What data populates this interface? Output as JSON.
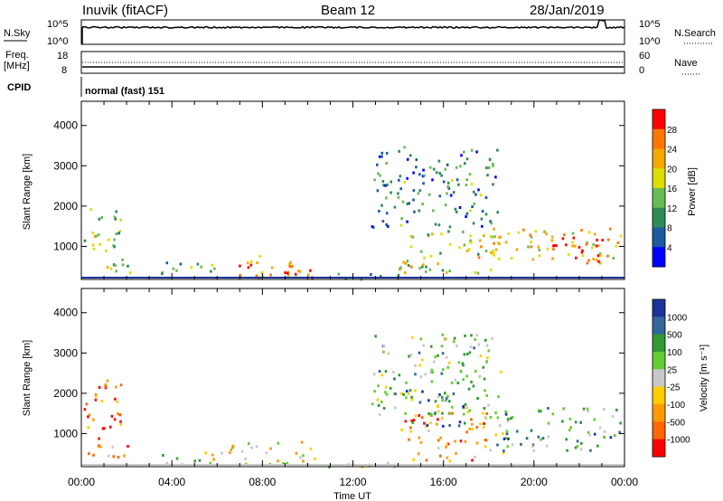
{
  "header": {
    "station": "Inuvik (fitACF)",
    "beam": "Beam 12",
    "date": "28/Jan/2019"
  },
  "top_panels": {
    "nsky_label": "N.Sky",
    "nsearch_label": "N.Search",
    "nsky_ticks": [
      "10^5",
      "10^0"
    ],
    "nsearch_ticks": [
      "10^5",
      "10^0"
    ],
    "freq_label_1": "Freq.",
    "freq_label_2": "[MHz]",
    "freq_ticks": [
      "18",
      "8"
    ],
    "nave_label": "Nave",
    "nave_ticks": [
      "60",
      "0"
    ],
    "cpid_label": "CPID",
    "cpid_value": "normal (fast) 151"
  },
  "colors": {
    "power_scale": [
      "#0000ff",
      "#1e5aa0",
      "#2e8b57",
      "#66bb55",
      "#dddd00",
      "#f4a800",
      "#ff7700",
      "#ff0000"
    ],
    "velocity_scale": [
      "#ff0000",
      "#ff6600",
      "#ff9900",
      "#ffcc00",
      "#c8c8c8",
      "#66cc33",
      "#339933",
      "#336699",
      "#1a3399"
    ],
    "ground_scatter": "#c8c8c8"
  },
  "chart_data": [
    {
      "type": "heatmap",
      "name": "power",
      "ylabel": "Slant Range [km]",
      "xlabel": "Time UT",
      "xlim": [
        0,
        24
      ],
      "xticks": [
        "00:00",
        "04:00",
        "08:00",
        "12:00",
        "16:00",
        "20:00",
        "00:00"
      ],
      "ylim": [
        180,
        4600
      ],
      "yticks": [
        1000,
        2000,
        3000,
        4000
      ],
      "colorbar_label": "Power [dB]",
      "colorbar_ticks": [
        "28",
        "24",
        "20",
        "16",
        "12",
        "8",
        "4"
      ],
      "colorbar_range": [
        0,
        30
      ],
      "scatter_regions": [
        {
          "t": [
            0.1,
            1.7
          ],
          "r": [
            800,
            2100
          ],
          "level": 0.45
        },
        {
          "t": [
            0.1,
            2.2
          ],
          "r": [
            300,
            700
          ],
          "level": 0.5
        },
        {
          "t": [
            3.5,
            6.2
          ],
          "r": [
            250,
            650
          ],
          "level": 0.35
        },
        {
          "t": [
            6.5,
            10.3
          ],
          "r": [
            250,
            800
          ],
          "level": 0.7
        },
        {
          "t": [
            8.3,
            10.2
          ],
          "r": [
            250,
            550
          ],
          "level": 0.95
        },
        {
          "t": [
            10.2,
            14.0
          ],
          "r": [
            200,
            350
          ],
          "level": 0.3
        },
        {
          "t": [
            14.0,
            18.5
          ],
          "r": [
            350,
            1500
          ],
          "level": 0.55
        },
        {
          "t": [
            18.0,
            23.8
          ],
          "r": [
            600,
            1500
          ],
          "level": 0.65
        },
        {
          "t": [
            20.5,
            23.0
          ],
          "r": [
            650,
            1250
          ],
          "level": 0.97
        },
        {
          "t": [
            12.8,
            18.5
          ],
          "r": [
            1500,
            3500
          ],
          "level": 0.3
        }
      ]
    },
    {
      "type": "heatmap",
      "name": "velocity",
      "ylabel": "Slant Range [km]",
      "xlabel": "Time UT",
      "xlim": [
        0,
        24
      ],
      "xticks": [
        "00:00",
        "04:00",
        "08:00",
        "12:00",
        "16:00",
        "20:00",
        "00:00"
      ],
      "ylim": [
        180,
        4600
      ],
      "yticks": [
        1000,
        2000,
        3000,
        4000
      ],
      "colorbar_label": "Velocity [m s⁻¹]",
      "colorbar_ticks": [
        "1000",
        "500",
        "100",
        "25",
        "-25",
        "-100",
        "-500",
        "-1000"
      ],
      "scatter_regions": [
        {
          "t": [
            0.1,
            1.8
          ],
          "r": [
            800,
            2400
          ],
          "level": 0.2
        },
        {
          "t": [
            0.1,
            2.3
          ],
          "r": [
            300,
            750
          ],
          "level": 0.3
        },
        {
          "t": [
            3.5,
            6.3
          ],
          "r": [
            250,
            650
          ],
          "level": 0.5
        },
        {
          "t": [
            6.5,
            10.4
          ],
          "r": [
            250,
            850
          ],
          "level": 0.45
        },
        {
          "t": [
            10.2,
            14.0
          ],
          "r": [
            200,
            350
          ],
          "level": 0.5
        },
        {
          "t": [
            14.0,
            18.6
          ],
          "r": [
            350,
            1550
          ],
          "level": 0.25
        },
        {
          "t": [
            18.0,
            23.8
          ],
          "r": [
            600,
            1700
          ],
          "level": 0.7
        },
        {
          "t": [
            14.2,
            17.0
          ],
          "r": [
            1200,
            2100
          ],
          "level": 0.85
        },
        {
          "t": [
            12.8,
            18.5
          ],
          "r": [
            1500,
            3500
          ],
          "level": 0.6
        }
      ]
    }
  ],
  "series_top": {
    "nsky_level": 0.72,
    "nsearch_spike_t": 23.0
  }
}
